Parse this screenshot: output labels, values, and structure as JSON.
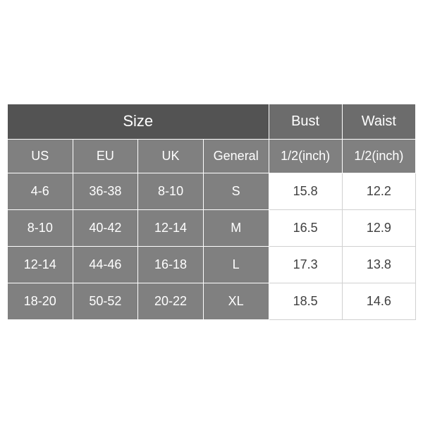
{
  "table": {
    "type": "table",
    "background_color": "#ffffff",
    "border_color_inner": "#ffffff",
    "border_color_white_cells": "#d0d0d0",
    "header_dark_bg": "#535353",
    "header_mid_bg": "#6c6c6c",
    "header_sub_bg": "#808080",
    "cell_gray_bg": "#808080",
    "text_white": "#ffffff",
    "text_dark": "#404040",
    "title_fontsize": 22,
    "header_fontsize": 20,
    "cell_fontsize": 18,
    "headers": {
      "size": "Size",
      "bust": "Bust",
      "waist": "Waist",
      "us": "US",
      "eu": "EU",
      "uk": "UK",
      "general": "General",
      "half_inch": "1/2(inch)"
    },
    "rows": [
      {
        "us": "4-6",
        "eu": "36-38",
        "uk": "8-10",
        "general": "S",
        "bust": "15.8",
        "waist": "12.2"
      },
      {
        "us": "8-10",
        "eu": "40-42",
        "uk": "12-14",
        "general": "M",
        "bust": "16.5",
        "waist": "12.9"
      },
      {
        "us": "12-14",
        "eu": "44-46",
        "uk": "16-18",
        "general": "L",
        "bust": "17.3",
        "waist": "13.8"
      },
      {
        "us": "18-20",
        "eu": "50-52",
        "uk": "20-22",
        "general": "XL",
        "bust": "18.5",
        "waist": "14.6"
      }
    ]
  }
}
